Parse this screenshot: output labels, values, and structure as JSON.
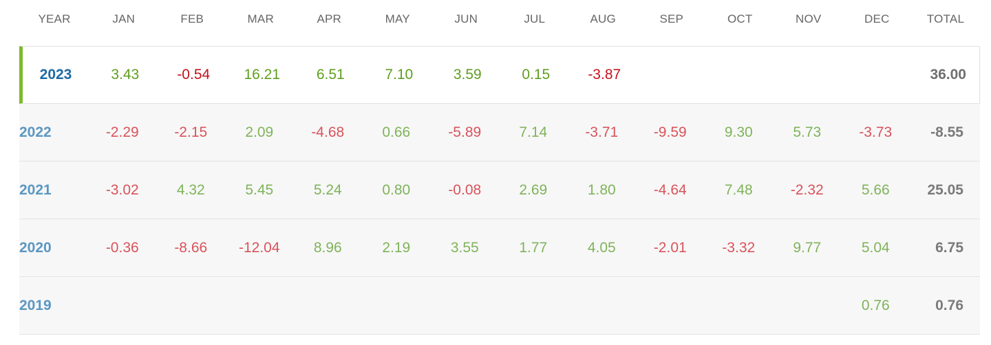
{
  "header": {
    "year": "YEAR",
    "months": [
      "JAN",
      "FEB",
      "MAR",
      "APR",
      "MAY",
      "JUN",
      "JUL",
      "AUG",
      "SEP",
      "OCT",
      "NOV",
      "DEC"
    ],
    "total": "TOTAL"
  },
  "rows": [
    {
      "year": "2023",
      "values": [
        "3.43",
        "-0.54",
        "16.21",
        "6.51",
        "7.10",
        "3.59",
        "0.15",
        "-3.87",
        "",
        "",
        "",
        ""
      ],
      "total": "36.00"
    },
    {
      "year": "2022",
      "values": [
        "-2.29",
        "-2.15",
        "2.09",
        "-4.68",
        "0.66",
        "-5.89",
        "7.14",
        "-3.71",
        "-9.59",
        "9.30",
        "5.73",
        "-3.73"
      ],
      "total": "-8.55"
    },
    {
      "year": "2021",
      "values": [
        "-3.02",
        "4.32",
        "5.45",
        "5.24",
        "0.80",
        "-0.08",
        "2.69",
        "1.80",
        "-4.64",
        "7.48",
        "-2.32",
        "5.66"
      ],
      "total": "25.05"
    },
    {
      "year": "2020",
      "values": [
        "-0.36",
        "-8.66",
        "-12.04",
        "8.96",
        "2.19",
        "3.55",
        "1.77",
        "4.05",
        "-2.01",
        "-3.32",
        "9.77",
        "5.04"
      ],
      "total": "6.75"
    },
    {
      "year": "2019",
      "values": [
        "",
        "",
        "",
        "",
        "",
        "",
        "",
        "",
        "",
        "",
        "",
        "0.76"
      ],
      "total": "0.76"
    }
  ],
  "colors": {
    "positive": "#7fb35a",
    "negative": "#d9535b",
    "current_positive": "#5f9e1f",
    "current_negative": "#c4121c",
    "year_label": "#5b97c2",
    "current_year_label": "#1d6aa3",
    "current_accent": "#7cba2c"
  }
}
